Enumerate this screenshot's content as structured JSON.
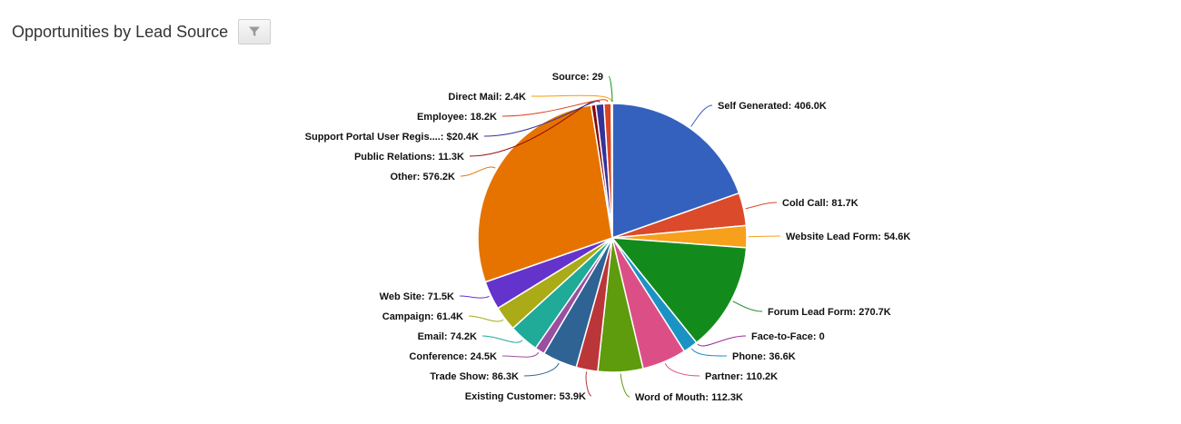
{
  "header": {
    "title": "Opportunities by Lead Source",
    "filter_icon": "filter-icon"
  },
  "chart_data": {
    "type": "pie",
    "title": "Opportunities by Lead Source",
    "slices": [
      {
        "name": "Self Generated",
        "label": "Self Generated: 406.0K",
        "value": 406000,
        "color": "#3461be"
      },
      {
        "name": "Cold Call",
        "label": "Cold Call: 81.7K",
        "value": 81700,
        "color": "#db4a2b"
      },
      {
        "name": "Website Lead Form",
        "label": "Website Lead Form: 54.6K",
        "value": 54600,
        "color": "#f7a01c"
      },
      {
        "name": "Forum Lead Form",
        "label": "Forum Lead Form: 270.7K",
        "value": 270700,
        "color": "#138b1c"
      },
      {
        "name": "Face-to-Face",
        "label": "Face-to-Face: 0",
        "value": 0,
        "color": "#9c2a9c"
      },
      {
        "name": "Phone",
        "label": "Phone: 36.6K",
        "value": 36600,
        "color": "#1a93c4"
      },
      {
        "name": "Partner",
        "label": "Partner: 110.2K",
        "value": 110200,
        "color": "#dc4f86"
      },
      {
        "name": "Word of Mouth",
        "label": "Word of Mouth: 112.3K",
        "value": 112300,
        "color": "#5e9b0d"
      },
      {
        "name": "Existing Customer",
        "label": "Existing Customer: 53.9K",
        "value": 53900,
        "color": "#bb3638"
      },
      {
        "name": "Trade Show",
        "label": "Trade Show: 86.3K",
        "value": 86300,
        "color": "#2e6394"
      },
      {
        "name": "Conference",
        "label": "Conference: 24.5K",
        "value": 24500,
        "color": "#9a4fa0"
      },
      {
        "name": "Email",
        "label": "Email: 74.2K",
        "value": 74200,
        "color": "#20aa98"
      },
      {
        "name": "Campaign",
        "label": "Campaign: 61.4K",
        "value": 61400,
        "color": "#aaab16"
      },
      {
        "name": "Web Site",
        "label": "Web Site: 71.5K",
        "value": 71500,
        "color": "#6433cc"
      },
      {
        "name": "Other",
        "label": "Other: 576.2K",
        "value": 576200,
        "color": "#e67300"
      },
      {
        "name": "Public Relations",
        "label": "Public Relations: 11.3K",
        "value": 11300,
        "color": "#8b0808"
      },
      {
        "name": "Support Portal User Regis....",
        "label": "Support Portal User Regis....: $20.4K",
        "value": 20400,
        "color": "#333399"
      },
      {
        "name": "Employee",
        "label": "Employee: 18.2K",
        "value": 18200,
        "color": "#dd4422"
      },
      {
        "name": "Direct Mail",
        "label": "Direct Mail: 2.4K",
        "value": 2400,
        "color": "#ff9900"
      },
      {
        "name": "Source",
        "label": "Source: 29",
        "value": 29,
        "color": "#109618"
      }
    ]
  }
}
